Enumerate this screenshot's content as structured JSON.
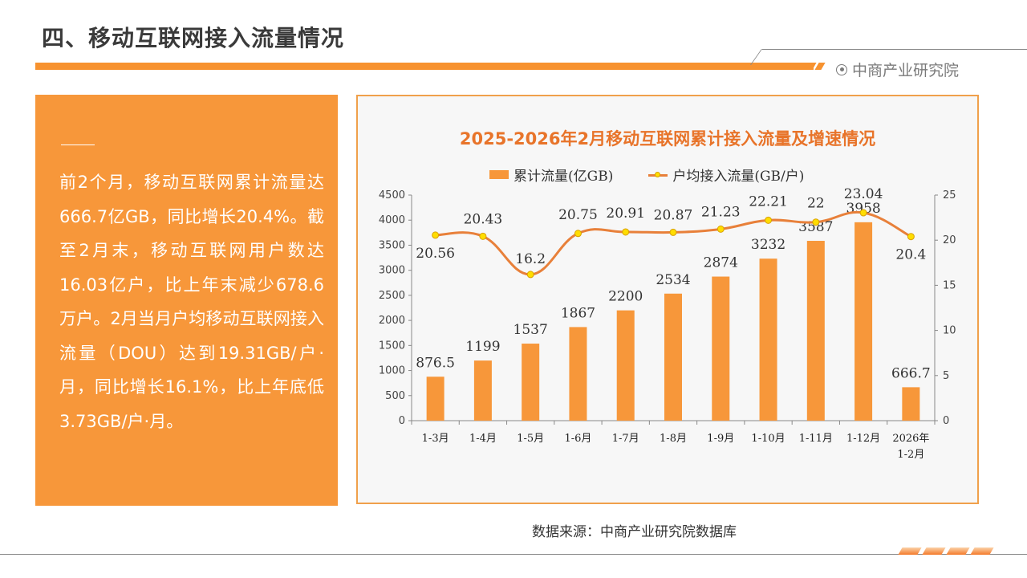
{
  "header": {
    "title": "四、移动互联网接入流量情况",
    "brand": "中商产业研究院"
  },
  "summary": {
    "text": "前2个月，移动互联网累计流量达666.7亿GB，同比增长20.4%。截至2月末，移动互联网用户数达16.03亿户，比上年末减少678.6万户。2月当月户均移动互联网接入流量（DOU）达到19.31GB/户·月，同比增长16.1%，比上年底低3.73GB/户·月。"
  },
  "source": "数据来源：中商产业研究院数据库",
  "colors": {
    "accent": "#f7973a",
    "title_orange": "#e8742a",
    "line": "#e8803a",
    "marker": "#ffdd00"
  },
  "chart_data": {
    "type": "bar+line",
    "title": "2025-2026年2月移动互联网累计接入流量及增速情况",
    "categories": [
      "1-3月",
      "1-4月",
      "1-5月",
      "1-6月",
      "1-7月",
      "1-8月",
      "1-9月",
      "1-10月",
      "1-11月",
      "1-12月",
      "2026年\n1-2月"
    ],
    "series": [
      {
        "name": "累计流量(亿GB)",
        "type": "bar",
        "axis": "left",
        "values": [
          876.5,
          1199,
          1537,
          1867,
          2200,
          2534,
          2874,
          3232,
          3587,
          3958,
          666.7
        ],
        "labels": [
          "876.5",
          "1199",
          "1537",
          "1867",
          "2200",
          "2534",
          "2874",
          "3232",
          "3587",
          "3958",
          "666.7"
        ]
      },
      {
        "name": "户均接入流量(GB/户)",
        "type": "line",
        "axis": "right",
        "values": [
          20.56,
          20.43,
          16.2,
          20.75,
          20.91,
          20.87,
          21.23,
          22.21,
          22,
          23.04,
          20.4
        ],
        "labels": [
          "20.56",
          "20.43",
          "16.2",
          "20.75",
          "20.91",
          "20.87",
          "21.23",
          "22.21",
          "22",
          "23.04",
          "20.4"
        ]
      }
    ],
    "y_left": {
      "min": 0,
      "max": 4500,
      "step": 500,
      "ticks": [
        "0",
        "500",
        "1000",
        "1500",
        "2000",
        "2500",
        "3000",
        "3500",
        "4000",
        "4500"
      ]
    },
    "y_right": {
      "min": 0,
      "max": 25,
      "step": 5,
      "ticks": [
        "0",
        "5",
        "10",
        "15",
        "20",
        "25"
      ]
    },
    "legend_position": "top",
    "grid": false
  }
}
